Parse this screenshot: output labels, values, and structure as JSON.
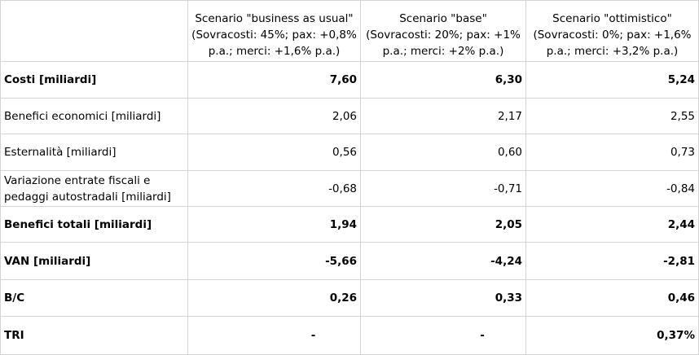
{
  "table": {
    "header": {
      "corner": "",
      "columns": [
        {
          "line1": "Scenario \"business as usual\"",
          "line2": "(Sovracosti: 45%; pax: +0,8%",
          "line3": "p.a.; merci: +1,6% p.a.)"
        },
        {
          "line1": "Scenario \"base\"",
          "line2": "(Sovracosti: 20%; pax: +1%",
          "line3": "p.a.; merci: +2% p.a.)"
        },
        {
          "line1": "Scenario \"ottimistico\"",
          "line2": "(Sovracosti: 0%; pax: +1,6%",
          "line3": "p.a.; merci: +3,2% p.a.)"
        }
      ]
    },
    "rows": [
      {
        "label": "Costi [miliardi]",
        "bold": true,
        "values": [
          "7,60",
          "6,30",
          "5,24"
        ]
      },
      {
        "label": "Benefici economici [miliardi]",
        "bold": false,
        "values": [
          "2,06",
          "2,17",
          "2,55"
        ]
      },
      {
        "label": "Esternalità [miliardi]",
        "bold": false,
        "values": [
          "0,56",
          "0,60",
          "0,73"
        ]
      },
      {
        "label_line1": "Variazione entrate fiscali e",
        "label_line2": "pedaggi autostradali [miliardi]",
        "bold": false,
        "values": [
          "-0,68",
          "-0,71",
          "-0,84"
        ]
      },
      {
        "label": "Benefici totali [miliardi]",
        "bold": true,
        "values": [
          "1,94",
          "2,05",
          "2,44"
        ]
      },
      {
        "label": "VAN [miliardi]",
        "bold": true,
        "values": [
          "-5,66",
          "-4,24",
          "-2,81"
        ]
      },
      {
        "label": "B/C",
        "bold": true,
        "values": [
          "0,26",
          "0,33",
          "0,46"
        ]
      },
      {
        "label": "TRI",
        "bold": true,
        "values": [
          "-",
          "-",
          "0,37%"
        ]
      }
    ]
  }
}
